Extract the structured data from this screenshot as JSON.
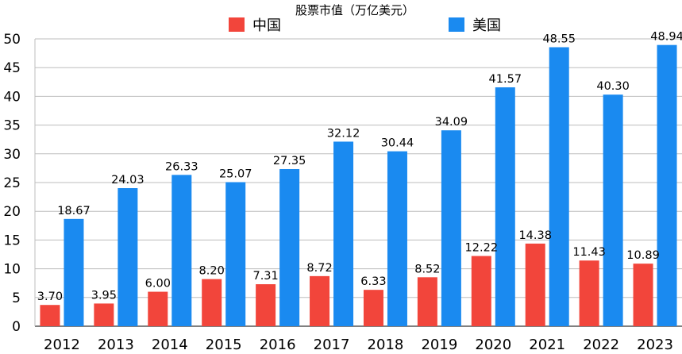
{
  "chart_data": {
    "type": "bar",
    "title": "股票市值（万亿美元）",
    "categories": [
      "2012",
      "2013",
      "2014",
      "2015",
      "2016",
      "2017",
      "2018",
      "2019",
      "2020",
      "2021",
      "2022",
      "2023"
    ],
    "series": [
      {
        "name": "中国",
        "color": "#f2453b",
        "values": [
          3.7,
          3.95,
          6.0,
          8.2,
          7.31,
          8.72,
          6.33,
          8.52,
          12.22,
          14.38,
          11.43,
          10.89
        ]
      },
      {
        "name": "美国",
        "color": "#1a8af0",
        "values": [
          18.67,
          24.03,
          26.33,
          25.07,
          27.35,
          32.12,
          30.44,
          34.09,
          41.57,
          48.55,
          40.3,
          48.94
        ]
      }
    ],
    "value_labels": [
      [
        "3.70",
        "3.95",
        "6.00",
        "8.20",
        "7.31",
        "8.72",
        "6.33",
        "8.52",
        "12.22",
        "14.38",
        "11.43",
        "10.89"
      ],
      [
        "18.67",
        "24.03",
        "26.33",
        "25.07",
        "27.35",
        "32.12",
        "30.44",
        "34.09",
        "41.57",
        "48.55",
        "40.30",
        "48.94"
      ]
    ],
    "ylim": [
      0,
      50
    ],
    "yticks": [
      "0",
      "5",
      "10",
      "15",
      "20",
      "25",
      "30",
      "35",
      "40",
      "45",
      "50"
    ],
    "grid": true,
    "legend_position": "top"
  }
}
